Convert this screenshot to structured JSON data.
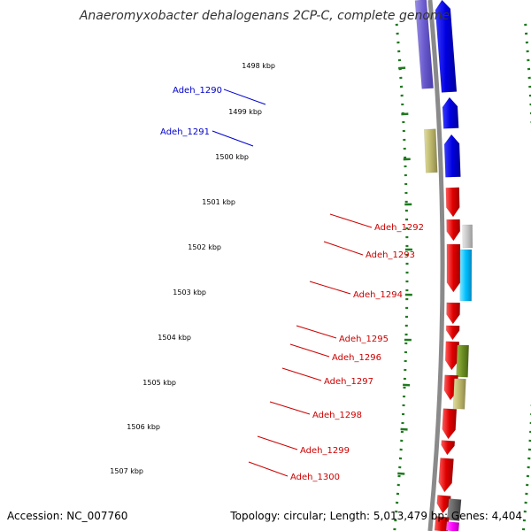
{
  "title": "Anaeromyxobacter dehalogenans 2CP-C, complete genome",
  "footer": {
    "accession": "Accession: NC_007760",
    "summary": "Topology: circular; Length: 5,013,479 bp; Genes: 4,404"
  },
  "colors": {
    "backbone": "#8a8a8a",
    "tick": "#1f7a1f",
    "reverse_label": "#0000cc",
    "forward_label": "#cc0000"
  },
  "tick_labels": [
    "1498 kbp",
    "1499 kbp",
    "1500 kbp",
    "1501 kbp",
    "1502 kbp",
    "1503 kbp",
    "1504 kbp",
    "1505 kbp",
    "1506 kbp",
    "1507 kbp"
  ],
  "genes": [
    {
      "label": "Adeh_1290",
      "color": "#0000cc"
    },
    {
      "label": "Adeh_1291",
      "color": "#0000cc"
    },
    {
      "label": "Adeh_1292",
      "color": "#cc0000"
    },
    {
      "label": "Adeh_1293",
      "color": "#cc0000"
    },
    {
      "label": "Adeh_1294",
      "color": "#cc0000"
    },
    {
      "label": "Adeh_1295",
      "color": "#cc0000"
    },
    {
      "label": "Adeh_1296",
      "color": "#cc0000"
    },
    {
      "label": "Adeh_1297",
      "color": "#cc0000"
    },
    {
      "label": "Adeh_1298",
      "color": "#cc0000"
    },
    {
      "label": "Adeh_1299",
      "color": "#cc0000"
    },
    {
      "label": "Adeh_1300",
      "color": "#cc0000"
    }
  ]
}
